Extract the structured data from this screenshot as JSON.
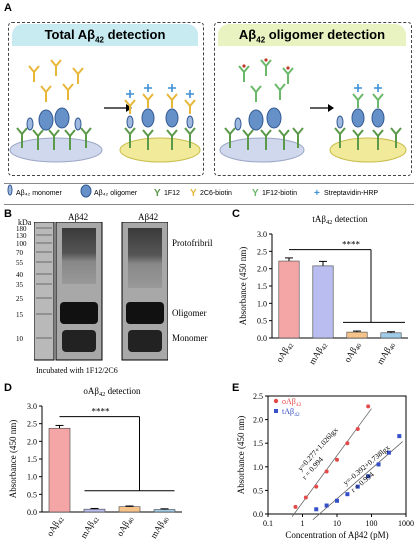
{
  "panelA": {
    "letter": "A",
    "total_title_main": "Total Aβ",
    "total_title_sub": "42",
    "total_title_tail": " detection",
    "oligo_title_main": "Aβ",
    "oligo_title_sub": "42",
    "oligo_title_tail": " oligomer detection",
    "total_header_color": "#c8ebf2",
    "oligo_header_color": "#e9f3c2",
    "legend": [
      "Aβ₄₂ monomer",
      "Aβ₄₂ oligomer",
      "1F12",
      "2C6-biotin",
      "1F12-biotin",
      "Streptavidin-HRP"
    ]
  },
  "panelB": {
    "letter": "B",
    "kda_label": "kDa",
    "markers": [
      "180",
      "130",
      "100",
      "70",
      "55",
      "40",
      "35",
      "25",
      "15",
      "10"
    ],
    "lane_labels": [
      "Aβ42",
      "Aβ42"
    ],
    "band_labels": [
      "Protofribril",
      "Oligomer",
      "Monomer"
    ],
    "caption": "Incubated with 1F12/2C6"
  },
  "panelC": {
    "letter": "C",
    "chart_data": {
      "type": "bar",
      "title": "tAβ42 detection",
      "ylabel": "Absorbance (450 nm)",
      "categories": [
        "oAβ42",
        "mAβ42",
        "oAβ40",
        "mAβ40"
      ],
      "values": [
        2.22,
        2.08,
        0.17,
        0.15
      ],
      "errors": [
        0.09,
        0.13,
        0.03,
        0.03
      ],
      "colors": [
        "#f4a6a6",
        "#b9bdf0",
        "#f6c48a",
        "#9fcbe8"
      ],
      "ylim": [
        0,
        3.0
      ],
      "yticks": [
        "0.0",
        "0.5",
        "1.0",
        "1.5",
        "2.0",
        "2.5",
        "3.0"
      ],
      "significance": "****"
    }
  },
  "panelD": {
    "letter": "D",
    "chart_data": {
      "type": "bar",
      "title": "oAβ42 detection",
      "ylabel": "Absorbance (450 nm)",
      "categories": [
        "oAβ42",
        "mAβ42",
        "oAβ40",
        "mAβ40"
      ],
      "values": [
        2.37,
        0.08,
        0.15,
        0.07
      ],
      "errors": [
        0.08,
        0.02,
        0.02,
        0.02
      ],
      "colors": [
        "#f4a6a6",
        "#b9bdf0",
        "#f6c48a",
        "#9fcbe8"
      ],
      "ylim": [
        0,
        3.0
      ],
      "yticks": [
        "0.0",
        "0.5",
        "1.0",
        "1.5",
        "2.0",
        "2.5",
        "3.0"
      ],
      "significance": "****"
    }
  },
  "panelE": {
    "letter": "E",
    "chart_data": {
      "type": "scatter",
      "xlabel": "Concentration of Aβ42 (pM)",
      "ylabel": "Absorbance (450 nm)",
      "xscale": "log",
      "xlim": [
        0.1,
        1000
      ],
      "ylim": [
        0,
        2.5
      ],
      "xticks": [
        "0.1",
        "1",
        "10",
        "100",
        "1000"
      ],
      "yticks": [
        "0.0",
        "0.5",
        "1.0",
        "1.5",
        "2.0",
        "2.5"
      ],
      "legend_position": "top-left",
      "series": [
        {
          "name": "oAβ42",
          "color": "#e34a4a",
          "x": [
            0.625,
            1.25,
            2.5,
            5,
            10,
            20,
            40,
            80
          ],
          "y": [
            0.15,
            0.35,
            0.58,
            0.9,
            1.15,
            1.5,
            1.8,
            2.28
          ],
          "equation": "y=0.277+1.026lgx",
          "r": "r = 0.994"
        },
        {
          "name": "tAβ42",
          "color": "#3550c8",
          "x": [
            2.5,
            5,
            10,
            20,
            40,
            80,
            160,
            320,
            640
          ],
          "y": [
            0.1,
            0.18,
            0.28,
            0.42,
            0.58,
            0.8,
            1.05,
            1.3,
            1.65
          ],
          "equation": "y=-0.392+0.738lgx",
          "r": "r = 0.994"
        }
      ]
    }
  }
}
